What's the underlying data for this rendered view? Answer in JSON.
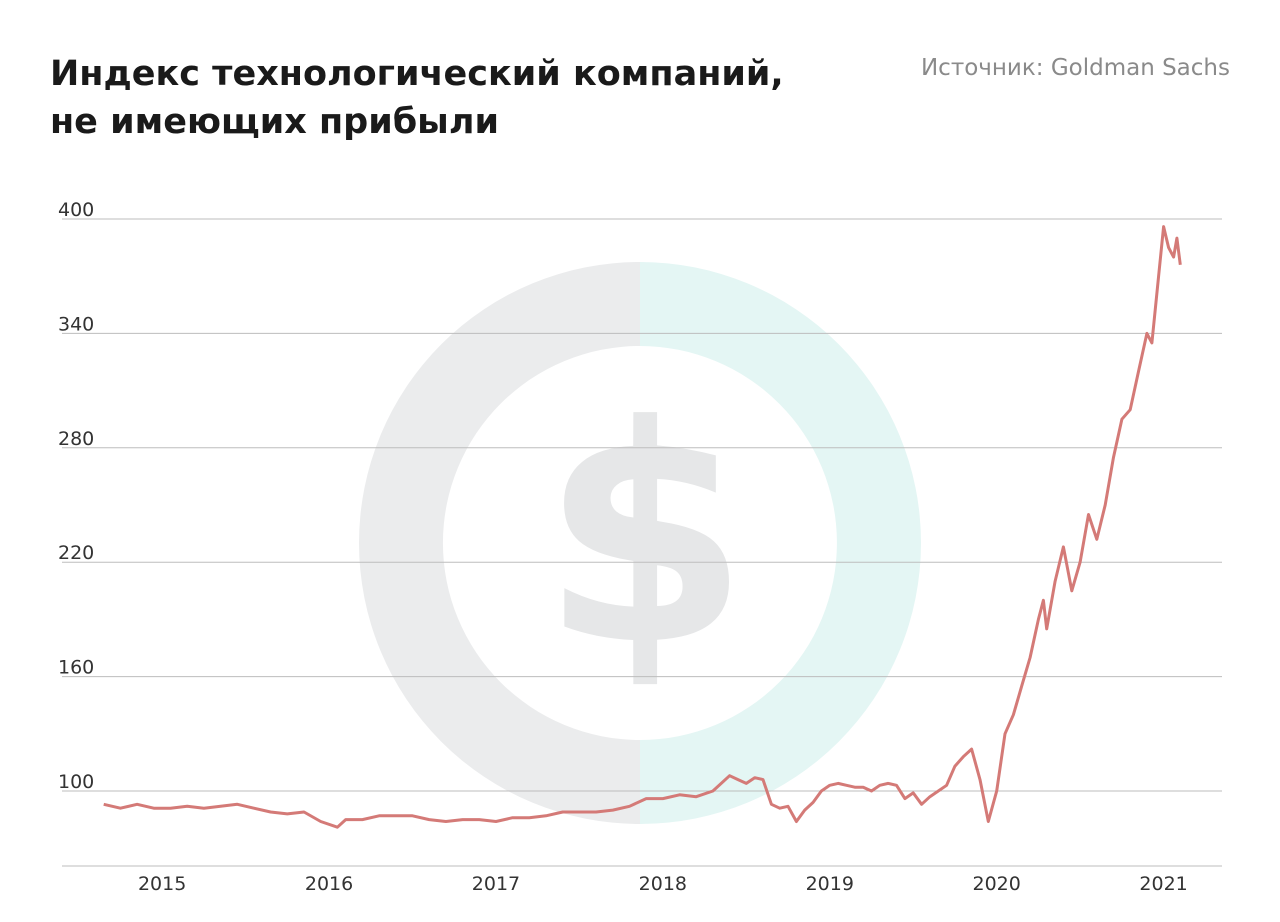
{
  "title_lines": [
    "Индекс технологический компаний,",
    "не имеющих прибыли"
  ],
  "source": "Источник: Goldman Sachs",
  "colors": {
    "line": "#d47a77",
    "grid": "#bdbdbd",
    "text": "#333333",
    "watermark_gray": "#ebeced",
    "watermark_teal": "#e4f6f4"
  },
  "watermark_icon": "dollar-coin-icon",
  "chart_data": {
    "type": "line",
    "title": "Индекс технологический компаний, не имеющих прибыли",
    "xlabel": "",
    "ylabel": "",
    "yticks": [
      100,
      160,
      220,
      280,
      340,
      400
    ],
    "ylim": [
      60,
      400
    ],
    "xticks": [
      "2015",
      "2016",
      "2017",
      "2018",
      "2019",
      "2020",
      "2021"
    ],
    "xlim": [
      2014.4,
      2021.35
    ],
    "grid": true,
    "series": [
      {
        "x": [
          2014.65,
          2014.75,
          2014.85,
          2014.95,
          2015.05,
          2015.15,
          2015.25,
          2015.35,
          2015.45,
          2015.55,
          2015.65,
          2015.75,
          2015.85,
          2015.95,
          2016.05,
          2016.1,
          2016.2,
          2016.3,
          2016.4,
          2016.5,
          2016.6,
          2016.7,
          2016.8,
          2016.9,
          2017.0,
          2017.1,
          2017.2,
          2017.3,
          2017.4,
          2017.5,
          2017.6,
          2017.7,
          2017.8,
          2017.9,
          2018.0,
          2018.1,
          2018.2,
          2018.3,
          2018.4,
          2018.45,
          2018.5,
          2018.55,
          2018.6,
          2018.65,
          2018.7,
          2018.75,
          2018.8,
          2018.85,
          2018.9,
          2018.95,
          2019.0,
          2019.05,
          2019.1,
          2019.15,
          2019.2,
          2019.25,
          2019.3,
          2019.35,
          2019.4,
          2019.45,
          2019.5,
          2019.55,
          2019.6,
          2019.65,
          2019.7,
          2019.75,
          2019.8,
          2019.85,
          2019.9,
          2019.95,
          2020.0,
          2020.05,
          2020.1,
          2020.15,
          2020.2,
          2020.25,
          2020.28,
          2020.3,
          2020.35,
          2020.4,
          2020.45,
          2020.5,
          2020.55,
          2020.6,
          2020.65,
          2020.7,
          2020.75,
          2020.8,
          2020.85,
          2020.9,
          2020.93,
          2020.97,
          2021.0,
          2021.03,
          2021.06,
          2021.08,
          2021.1
        ],
        "y": [
          93,
          91,
          93,
          91,
          91,
          92,
          91,
          92,
          93,
          91,
          89,
          88,
          89,
          84,
          81,
          85,
          85,
          87,
          87,
          87,
          85,
          84,
          85,
          85,
          84,
          86,
          86,
          87,
          89,
          89,
          89,
          90,
          92,
          96,
          96,
          98,
          97,
          100,
          108,
          106,
          104,
          107,
          106,
          93,
          91,
          92,
          84,
          90,
          94,
          100,
          103,
          104,
          103,
          102,
          102,
          100,
          103,
          104,
          103,
          96,
          99,
          93,
          97,
          100,
          103,
          113,
          118,
          122,
          106,
          84,
          100,
          130,
          140,
          155,
          170,
          190,
          200,
          185,
          210,
          228,
          205,
          220,
          245,
          232,
          250,
          275,
          295,
          300,
          320,
          340,
          335,
          370,
          396,
          385,
          380,
          390,
          376
        ]
      }
    ]
  }
}
